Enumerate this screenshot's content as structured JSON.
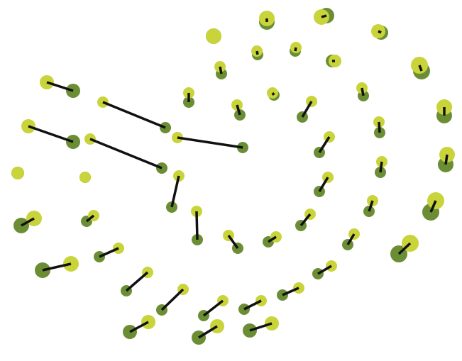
{
  "colors": {
    "background": "#ffffff",
    "start_dot": "#c8d43a",
    "end_dot": "#6b8e35",
    "connector": "#111111"
  },
  "legend": {},
  "vectors_count_note": ""
}
